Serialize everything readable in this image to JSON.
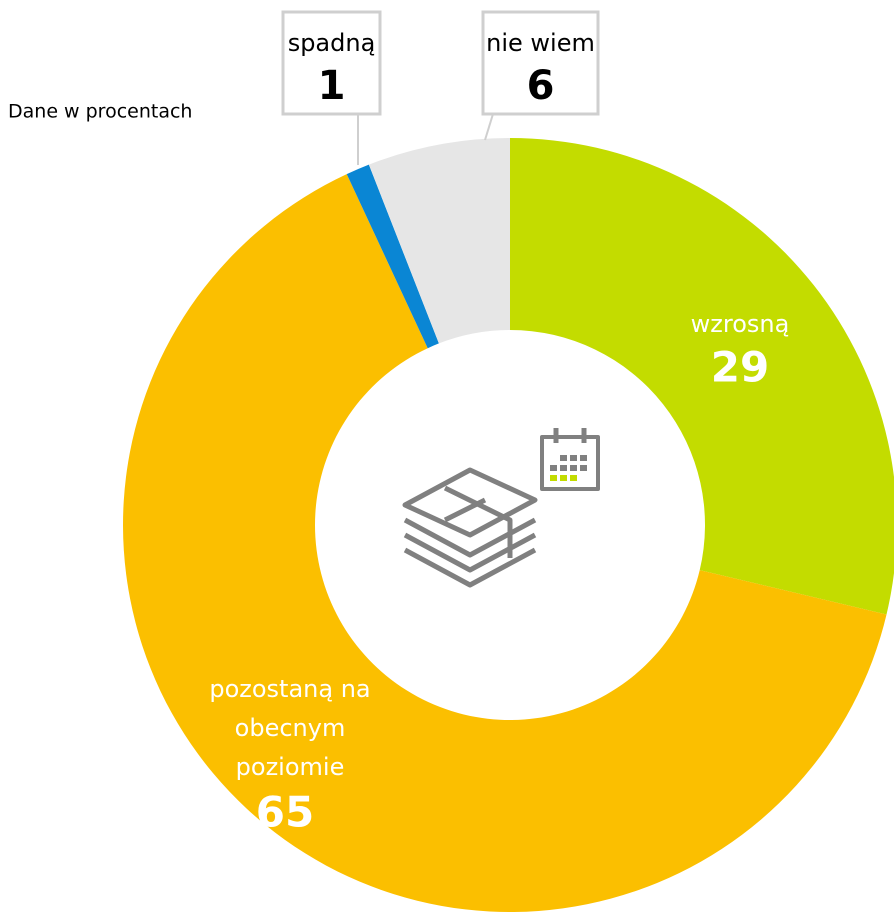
{
  "chart_data": {
    "type": "donut",
    "note": "Dane w procentach",
    "categories": [
      "wzrosną",
      "pozostaną na obecnym poziomie",
      "spadną",
      "nie wiem"
    ],
    "values": [
      29,
      65,
      1,
      6
    ],
    "colors": [
      "#c3dc00",
      "#fbbf00",
      "#0a86d4",
      "#e6e6e6"
    ]
  }
}
